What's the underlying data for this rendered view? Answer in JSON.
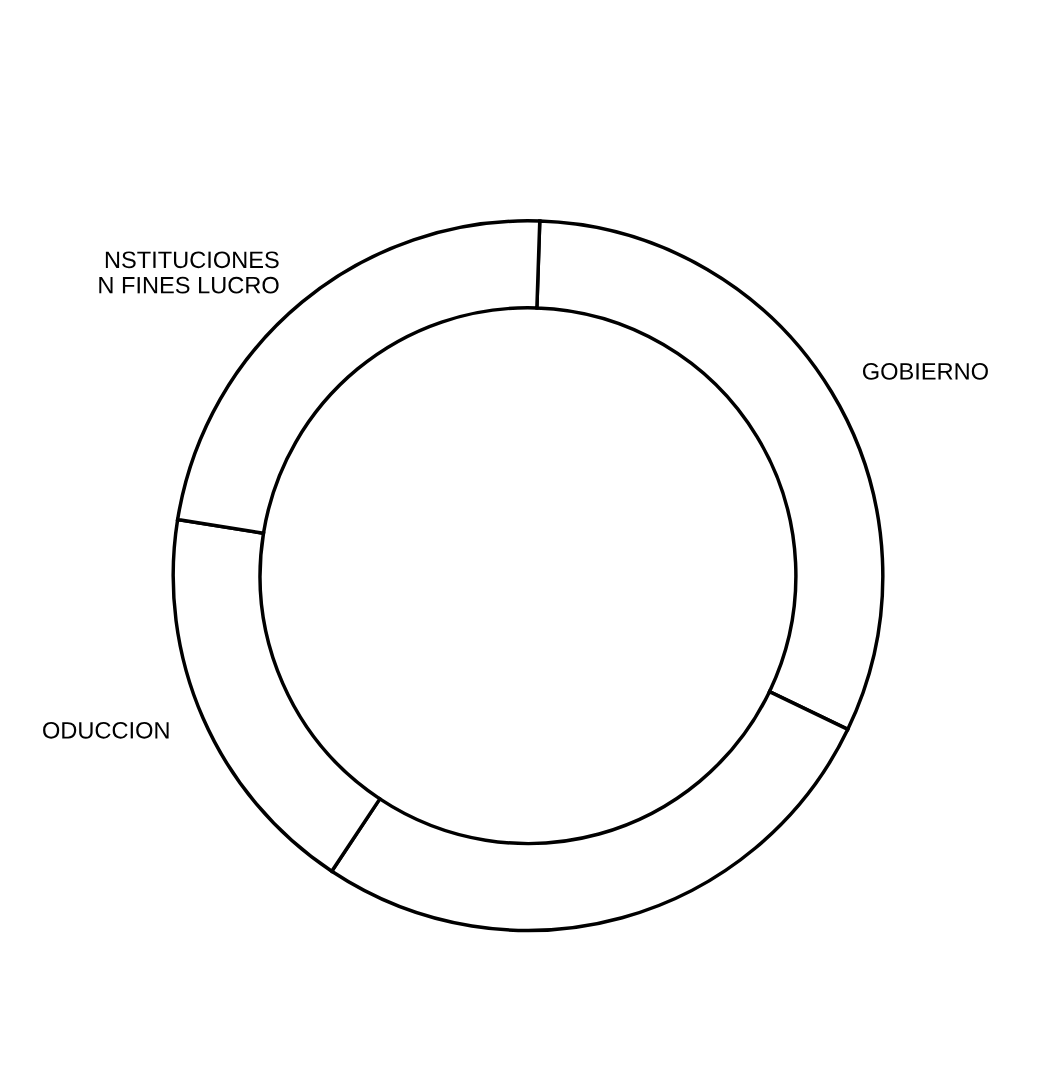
{
  "chart_data": {
    "type": "donut",
    "categories": [
      "GOBIERNO",
      null,
      "ODUCCION",
      "NSTITUCIONES\nN FINES LUCRO"
    ],
    "values": [
      31.6,
      27.2,
      18.2,
      23.0
    ],
    "colors": [
      "#ffffff",
      "#ffffff",
      "#ffffff",
      "#ffffff"
    ]
  }
}
